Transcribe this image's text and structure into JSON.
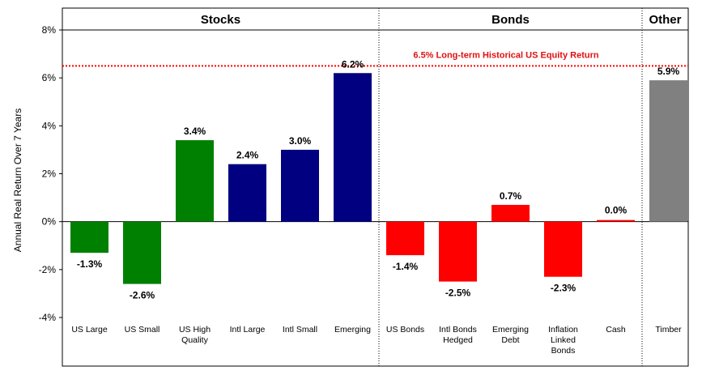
{
  "chart_data": {
    "type": "bar",
    "ylabel": "Annual Real Return Over 7 Years",
    "ylim": [
      -4,
      8
    ],
    "yticks": [
      -4,
      -2,
      0,
      2,
      4,
      6,
      8
    ],
    "ytick_labels": [
      "-4%",
      "-2%",
      "0%",
      "2%",
      "4%",
      "6%",
      "8%"
    ],
    "sections": [
      {
        "title": "Stocks",
        "count": 6
      },
      {
        "title": "Bonds",
        "count": 5
      },
      {
        "title": "Other",
        "count": 1
      }
    ],
    "bars": [
      {
        "category": [
          "US Large"
        ],
        "value": -1.3,
        "label": "-1.3%",
        "color": "#008000"
      },
      {
        "category": [
          "US Small"
        ],
        "value": -2.6,
        "label": "-2.6%",
        "color": "#008000"
      },
      {
        "category": [
          "US High",
          "Quality"
        ],
        "value": 3.4,
        "label": "3.4%",
        "color": "#008000"
      },
      {
        "category": [
          "Intl Large"
        ],
        "value": 2.4,
        "label": "2.4%",
        "color": "#000080"
      },
      {
        "category": [
          "Intl Small"
        ],
        "value": 3.0,
        "label": "3.0%",
        "color": "#000080"
      },
      {
        "category": [
          "Emerging"
        ],
        "value": 6.2,
        "label": "6.2%",
        "color": "#000080"
      },
      {
        "category": [
          "US Bonds"
        ],
        "value": -1.4,
        "label": "-1.4%",
        "color": "#ff0000"
      },
      {
        "category": [
          "Intl Bonds",
          "Hedged"
        ],
        "value": -2.5,
        "label": "-2.5%",
        "color": "#ff0000"
      },
      {
        "category": [
          "Emerging",
          "Debt"
        ],
        "value": 0.7,
        "label": "0.7%",
        "color": "#ff0000"
      },
      {
        "category": [
          "Inflation",
          "Linked",
          "Bonds"
        ],
        "value": -2.3,
        "label": "-2.3%",
        "color": "#ff0000"
      },
      {
        "category": [
          "Cash"
        ],
        "value": 0.0,
        "label": "0.0%",
        "color": "#ff0000"
      },
      {
        "category": [
          "Timber"
        ],
        "value": 5.9,
        "label": "5.9%",
        "color": "#808080"
      }
    ],
    "reference_line": {
      "value": 6.5,
      "label": "6.5% Long-term Historical US Equity Return",
      "color": "#ff0000"
    }
  }
}
